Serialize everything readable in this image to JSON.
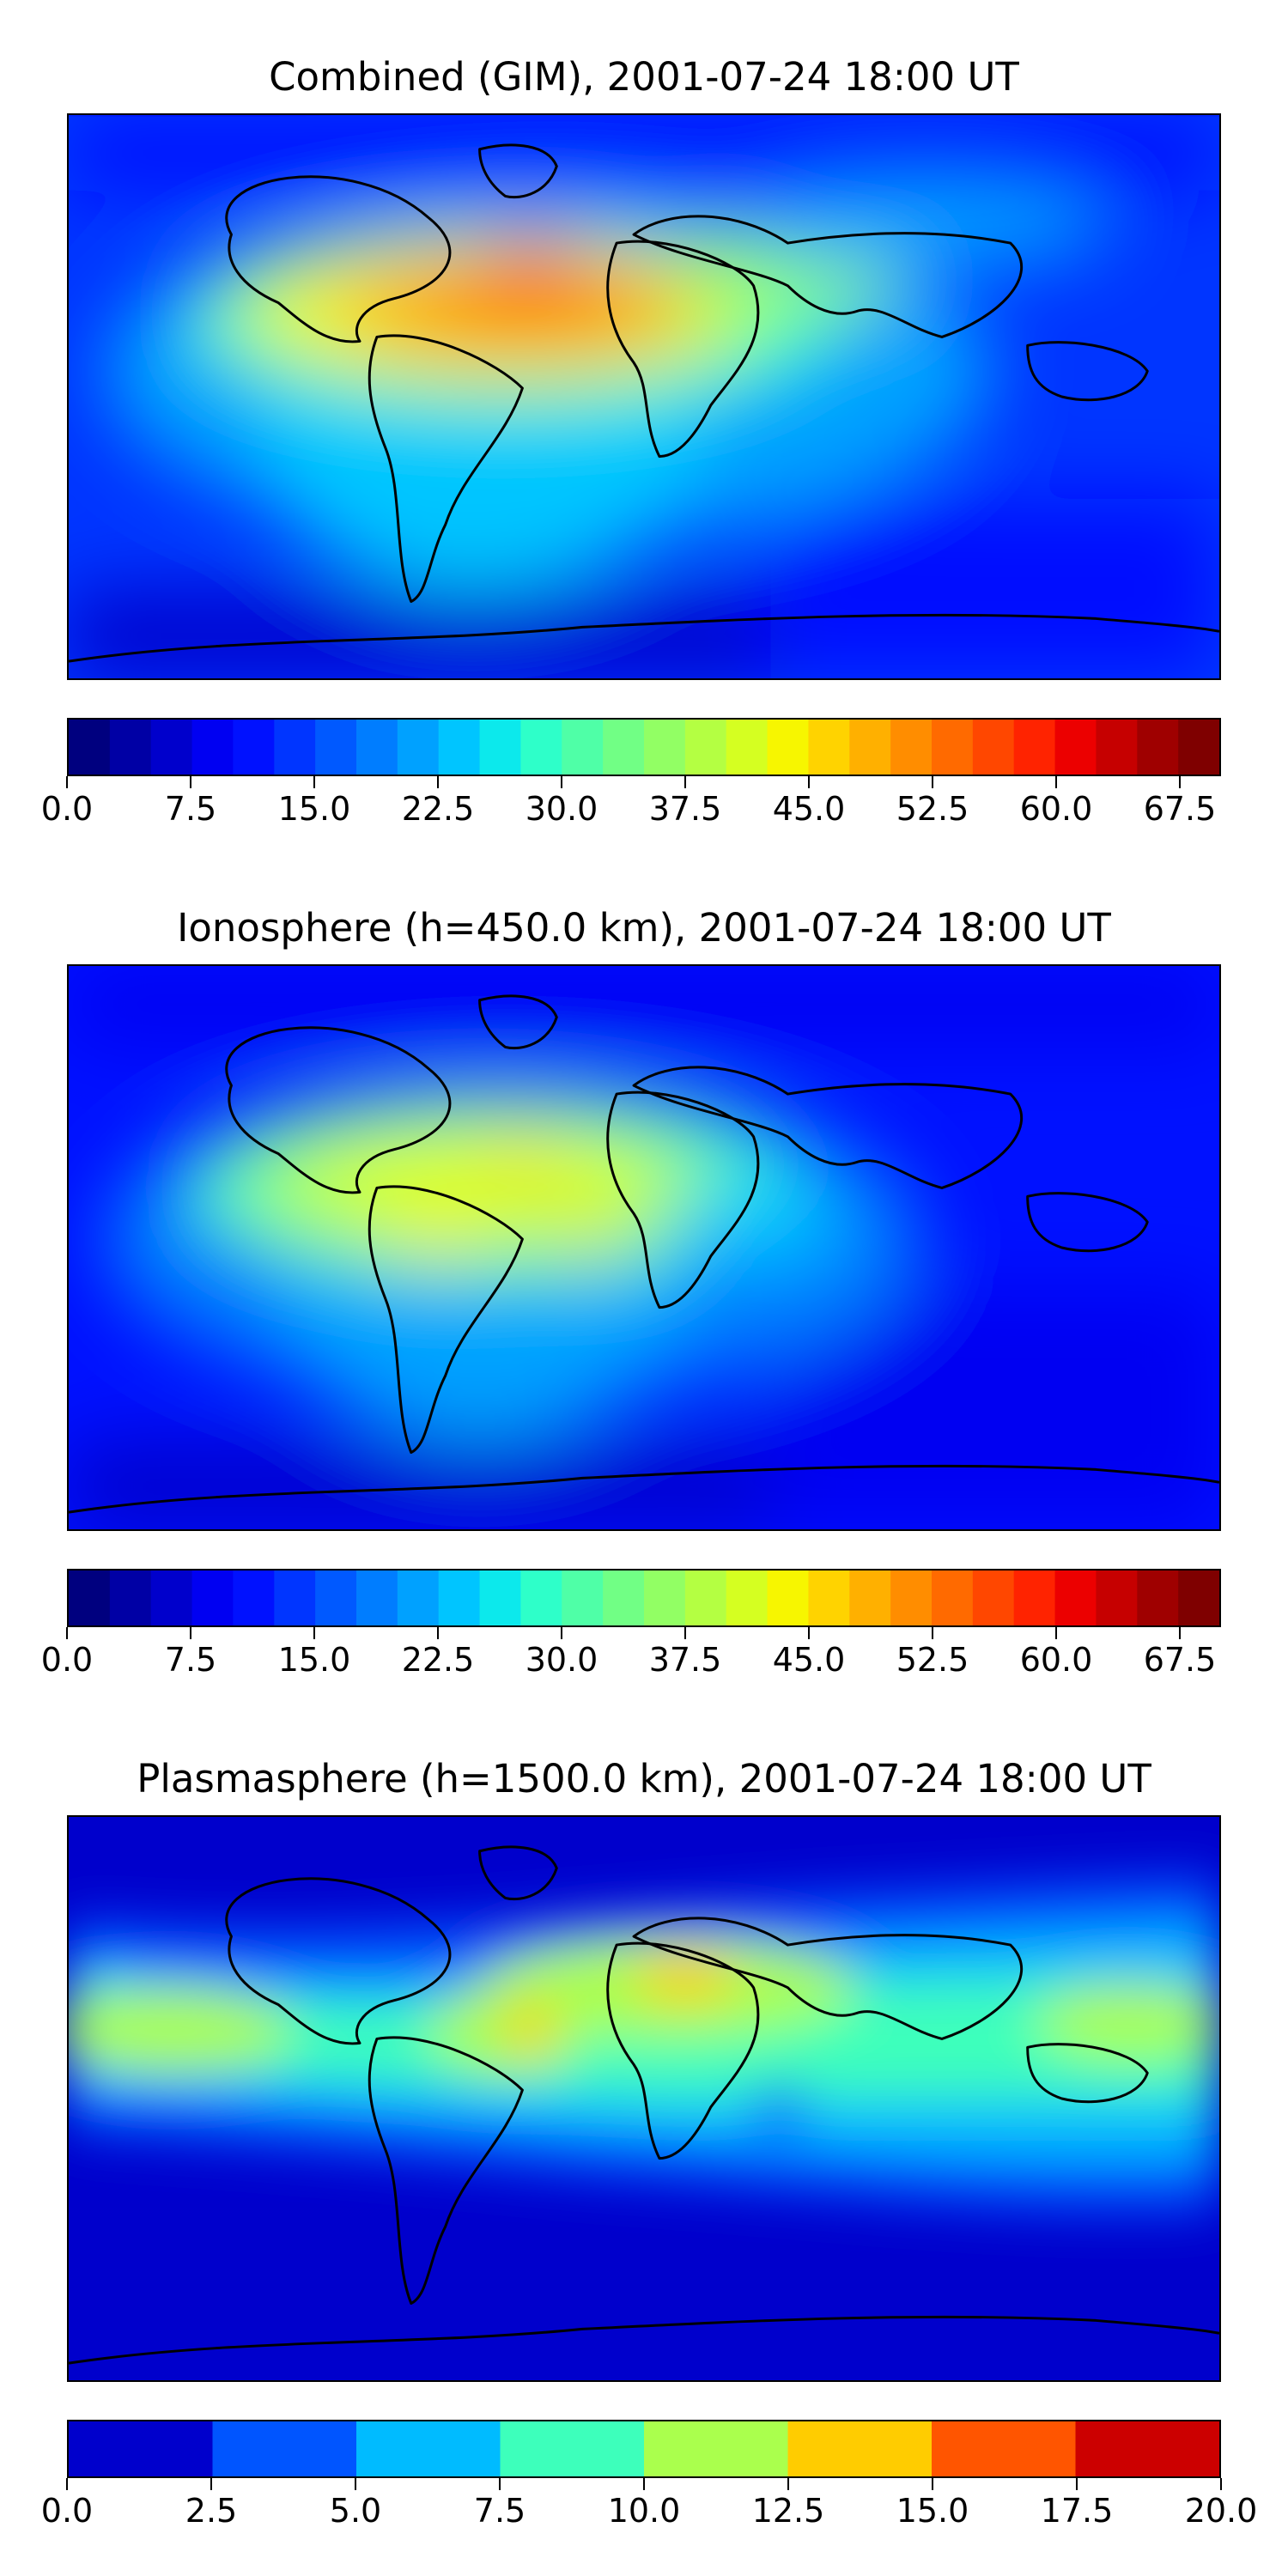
{
  "panels": [
    {
      "title": "Combined (GIM), 2001-07-24 18:00 UT",
      "colorbar": {
        "ticks": [
          "0.0",
          "7.5",
          "15.0",
          "22.5",
          "30.0",
          "37.5",
          "45.0",
          "52.5",
          "60.0",
          "67.5"
        ],
        "colors": [
          "#00007f",
          "#0000a5",
          "#0000cc",
          "#0000f2",
          "#0011ff",
          "#0035ff",
          "#0059ff",
          "#007dff",
          "#00a1ff",
          "#00c5ff",
          "#0ce9ec",
          "#2effc9",
          "#4fffa7",
          "#71ff85",
          "#92ff64",
          "#b4ff42",
          "#d5ff21",
          "#f7f600",
          "#ffd300",
          "#ffb000",
          "#ff8d00",
          "#ff6a00",
          "#ff4700",
          "#ff2300",
          "#ec0000",
          "#c60000",
          "#9f0000",
          "#7f0000"
        ]
      }
    },
    {
      "title": "Ionosphere  (h=450.0 km), 2001-07-24 18:00 UT",
      "colorbar": {
        "ticks": [
          "0.0",
          "7.5",
          "15.0",
          "22.5",
          "30.0",
          "37.5",
          "45.0",
          "52.5",
          "60.0",
          "67.5"
        ],
        "colors": [
          "#00007f",
          "#0000a5",
          "#0000cc",
          "#0000f2",
          "#0011ff",
          "#0035ff",
          "#0059ff",
          "#007dff",
          "#00a1ff",
          "#00c5ff",
          "#0ce9ec",
          "#2effc9",
          "#4fffa7",
          "#71ff85",
          "#92ff64",
          "#b4ff42",
          "#d5ff21",
          "#f7f600",
          "#ffd300",
          "#ffb000",
          "#ff8d00",
          "#ff6a00",
          "#ff4700",
          "#ff2300",
          "#ec0000",
          "#c60000",
          "#9f0000",
          "#7f0000"
        ]
      }
    },
    {
      "title": "Plasmasphere (h=1500.0 km), 2001-07-24 18:00 UT",
      "colorbar": {
        "ticks": [
          "0.0",
          "2.5",
          "5.0",
          "7.5",
          "10.0",
          "12.5",
          "15.0",
          "17.5",
          "20.0"
        ],
        "colors": [
          "#0000cc",
          "#0055ff",
          "#00bbff",
          "#3dffbb",
          "#aaff4d",
          "#ffcc00",
          "#ff5500",
          "#cc0000"
        ]
      }
    }
  ]
}
